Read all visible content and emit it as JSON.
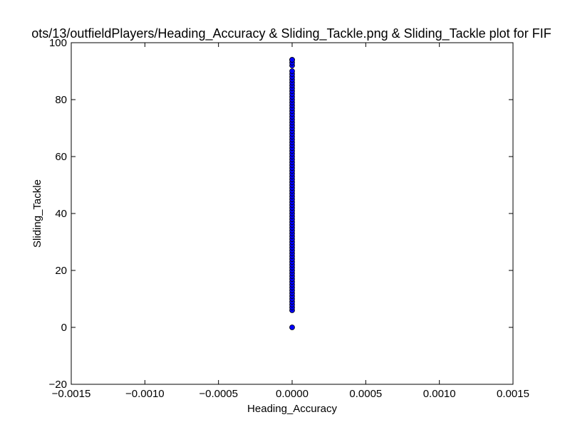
{
  "chart_data": {
    "type": "scatter",
    "title": "ots/13/outfieldPlayers/Heading_Accuracy & Sliding_Tackle.png & Sliding_Tackle plot for FIF",
    "xlabel": "Heading_Accuracy",
    "ylabel": "Sliding_Tackle",
    "xlim": [
      -0.0015,
      0.0015
    ],
    "ylim": [
      -20,
      100
    ],
    "x_ticks": [
      -0.0015,
      -0.001,
      -0.0005,
      0.0,
      0.0005,
      0.001,
      0.0015
    ],
    "x_tick_labels": [
      "−0.0015",
      "−0.0010",
      "−0.0005",
      "0.0000",
      "0.0005",
      "0.0010",
      "0.0015"
    ],
    "y_ticks": [
      -20,
      0,
      20,
      40,
      60,
      80,
      100
    ],
    "y_tick_labels": [
      "−20",
      "0",
      "20",
      "40",
      "60",
      "80",
      "100"
    ],
    "grid": false,
    "marker_color": "#0000ff",
    "marker_edge": "#000000",
    "series": [
      {
        "x": [
          0,
          0,
          0,
          0,
          0,
          0,
          0,
          0,
          0,
          0,
          0,
          0,
          0,
          0,
          0,
          0,
          0,
          0,
          0,
          0,
          0,
          0,
          0,
          0,
          0,
          0,
          0,
          0,
          0,
          0,
          0,
          0,
          0,
          0,
          0,
          0,
          0,
          0,
          0,
          0,
          0,
          0,
          0,
          0,
          0,
          0,
          0,
          0,
          0,
          0,
          0,
          0,
          0,
          0,
          0,
          0,
          0,
          0,
          0,
          0,
          0,
          0,
          0,
          0,
          0,
          0,
          0,
          0,
          0,
          0,
          0,
          0,
          0,
          0,
          0,
          0,
          0,
          0,
          0,
          0,
          0,
          0,
          0,
          0,
          0,
          0,
          0,
          0,
          0,
          0
        ],
        "y": [
          0,
          6,
          7,
          8,
          9,
          10,
          11,
          12,
          13,
          14,
          15,
          16,
          17,
          18,
          19,
          20,
          21,
          22,
          23,
          24,
          25,
          26,
          27,
          28,
          29,
          30,
          31,
          32,
          33,
          34,
          35,
          36,
          37,
          38,
          39,
          40,
          41,
          42,
          43,
          44,
          45,
          46,
          47,
          48,
          49,
          50,
          51,
          52,
          53,
          54,
          55,
          56,
          57,
          58,
          59,
          60,
          61,
          62,
          63,
          64,
          65,
          66,
          67,
          68,
          69,
          70,
          71,
          72,
          73,
          74,
          75,
          76,
          77,
          78,
          79,
          80,
          81,
          82,
          83,
          84,
          85,
          86,
          87,
          88,
          89,
          90,
          92,
          93,
          94,
          94
        ]
      }
    ]
  }
}
